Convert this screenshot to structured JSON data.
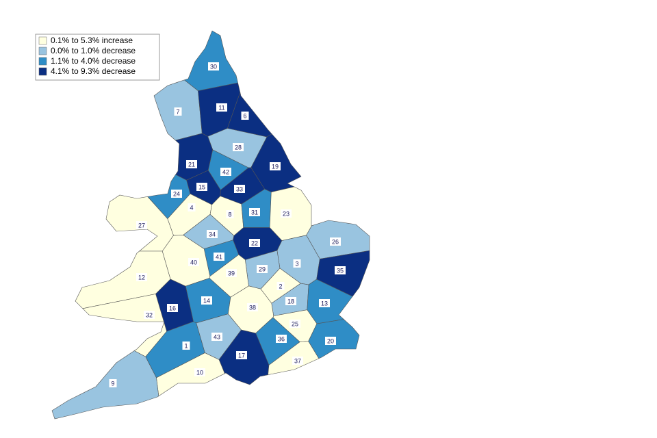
{
  "legend": {
    "items": [
      {
        "label": "0.1% to 5.3% increase",
        "color": "#ffffe0"
      },
      {
        "label": "0.0% to 1.0% decrease",
        "color": "#99c4e0"
      },
      {
        "label": "1.1% to 4.0% decrease",
        "color": "#2f8dc6"
      },
      {
        "label": "4.1% to 9.3% decrease",
        "color": "#0b2f82"
      }
    ]
  },
  "regions": [
    {
      "label": "30",
      "class": 2
    },
    {
      "label": "7",
      "class": 1
    },
    {
      "label": "11",
      "class": 3
    },
    {
      "label": "6",
      "class": 3
    },
    {
      "label": "28",
      "class": 1
    },
    {
      "label": "21",
      "class": 3
    },
    {
      "label": "42",
      "class": 2
    },
    {
      "label": "19",
      "class": 3
    },
    {
      "label": "15",
      "class": 3
    },
    {
      "label": "33",
      "class": 3
    },
    {
      "label": "24",
      "class": 2
    },
    {
      "label": "4",
      "class": 0
    },
    {
      "label": "8",
      "class": 0
    },
    {
      "label": "31",
      "class": 2
    },
    {
      "label": "23",
      "class": 0
    },
    {
      "label": "27",
      "class": 0
    },
    {
      "label": "34",
      "class": 1
    },
    {
      "label": "22",
      "class": 3
    },
    {
      "label": "26",
      "class": 1
    },
    {
      "label": "41",
      "class": 2
    },
    {
      "label": "40",
      "class": 0
    },
    {
      "label": "3",
      "class": 1
    },
    {
      "label": "35",
      "class": 3
    },
    {
      "label": "29",
      "class": 1
    },
    {
      "label": "39",
      "class": 0
    },
    {
      "label": "12",
      "class": 0
    },
    {
      "label": "2",
      "class": 0
    },
    {
      "label": "18",
      "class": 1
    },
    {
      "label": "14",
      "class": 2
    },
    {
      "label": "13",
      "class": 2
    },
    {
      "label": "38",
      "class": 0
    },
    {
      "label": "16",
      "class": 3
    },
    {
      "label": "32",
      "class": 0
    },
    {
      "label": "25",
      "class": 0
    },
    {
      "label": "1",
      "class": 2
    },
    {
      "label": "43",
      "class": 1
    },
    {
      "label": "36",
      "class": 2
    },
    {
      "label": "20",
      "class": 2
    },
    {
      "label": "17",
      "class": 3
    },
    {
      "label": "37",
      "class": 0
    },
    {
      "label": "10",
      "class": 0
    },
    {
      "label": "9",
      "class": 1
    }
  ]
}
